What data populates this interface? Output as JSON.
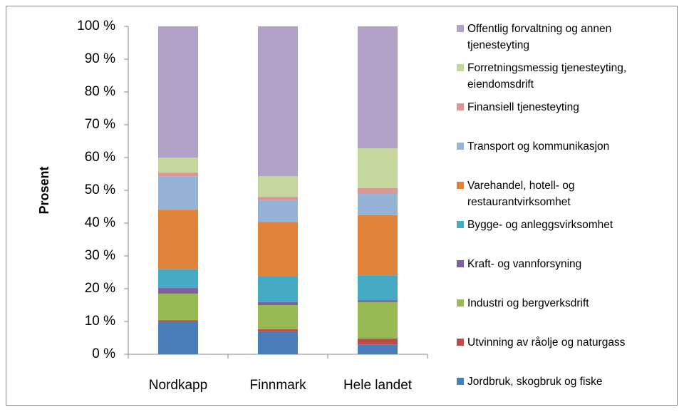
{
  "chart_data": {
    "type": "stacked_bar",
    "ylabel": "Prosent",
    "categories": [
      "Nordkapp",
      "Finnmark",
      "Hele landet"
    ],
    "ylim": [
      0,
      100
    ],
    "yticks": [
      {
        "value": 0,
        "label": "0 %"
      },
      {
        "value": 10,
        "label": "10 %"
      },
      {
        "value": 20,
        "label": "20 %"
      },
      {
        "value": 30,
        "label": "30 %"
      },
      {
        "value": 40,
        "label": "40 %"
      },
      {
        "value": 50,
        "label": "50 %"
      },
      {
        "value": 60,
        "label": "60 %"
      },
      {
        "value": 70,
        "label": "70 %"
      },
      {
        "value": 80,
        "label": "80 %"
      },
      {
        "value": 90,
        "label": "90 %"
      },
      {
        "value": 100,
        "label": "100 %"
      }
    ],
    "legend": "right",
    "series": [
      {
        "name": "Jordbruk, skogbruk og fiske",
        "color": "#4a7ebb",
        "values": [
          9.8,
          7.0,
          3.0
        ]
      },
      {
        "name": "Utvinning av råolje og naturgass",
        "color": "#be4b48",
        "values": [
          0.6,
          0.6,
          1.8
        ]
      },
      {
        "name": "Industri og bergverksdrift",
        "color": "#98b954",
        "values": [
          8.1,
          7.4,
          11.1
        ]
      },
      {
        "name": "Kraft- og vannforsyning",
        "color": "#7d60a0",
        "values": [
          1.7,
          0.9,
          0.6
        ]
      },
      {
        "name": "Bygge- og anleggsvirksomhet",
        "color": "#46aac5",
        "values": [
          5.7,
          8.0,
          7.6
        ]
      },
      {
        "name": "Varehandel, hotell- og restaurantvirksomhet",
        "color": "#e0843c",
        "values": [
          18.2,
          16.5,
          18.3
        ]
      },
      {
        "name": "Transport og kommunikasjon",
        "color": "#95b3d7",
        "values": [
          10.2,
          6.6,
          6.5
        ]
      },
      {
        "name": "Finansiell tjenesteyting",
        "color": "#d99694",
        "values": [
          1.1,
          1.0,
          1.8
        ]
      },
      {
        "name": "Forretningsmessig tjenesteyting, eiendomsdrift",
        "color": "#c3d69b",
        "values": [
          4.6,
          6.3,
          12.1
        ]
      },
      {
        "name": "Offentlig forvaltning og annen tjenesteyting",
        "color": "#b3a2c7",
        "values": [
          40.0,
          45.7,
          37.2
        ]
      }
    ]
  }
}
